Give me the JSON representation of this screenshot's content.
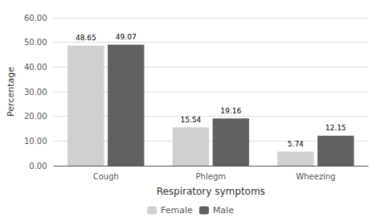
{
  "chart_data": {
    "type": "bar",
    "xlabel": "Respiratory symptoms",
    "ylabel": "Percentage",
    "categories": [
      "Cough",
      "Phlegm",
      "Wheezing"
    ],
    "series": [
      {
        "name": "Female",
        "color": "#d0d0d0",
        "values": [
          48.65,
          15.54,
          5.74
        ]
      },
      {
        "name": "Male",
        "color": "#606060",
        "values": [
          49.07,
          19.16,
          12.15
        ]
      }
    ],
    "ylim": [
      0,
      60
    ],
    "yticks": [
      {
        "value": 0.0,
        "label": "0.00"
      },
      {
        "value": 10.0,
        "label": "10.00"
      },
      {
        "value": 20.0,
        "label": "20.00"
      },
      {
        "value": 30.0,
        "label": "30.00"
      },
      {
        "value": 40.0,
        "label": "40.00"
      },
      {
        "value": 50.0,
        "label": "50.00"
      },
      {
        "value": 60.0,
        "label": "60.00"
      }
    ],
    "grid": true,
    "legend": "bottom",
    "data_labels": true
  }
}
